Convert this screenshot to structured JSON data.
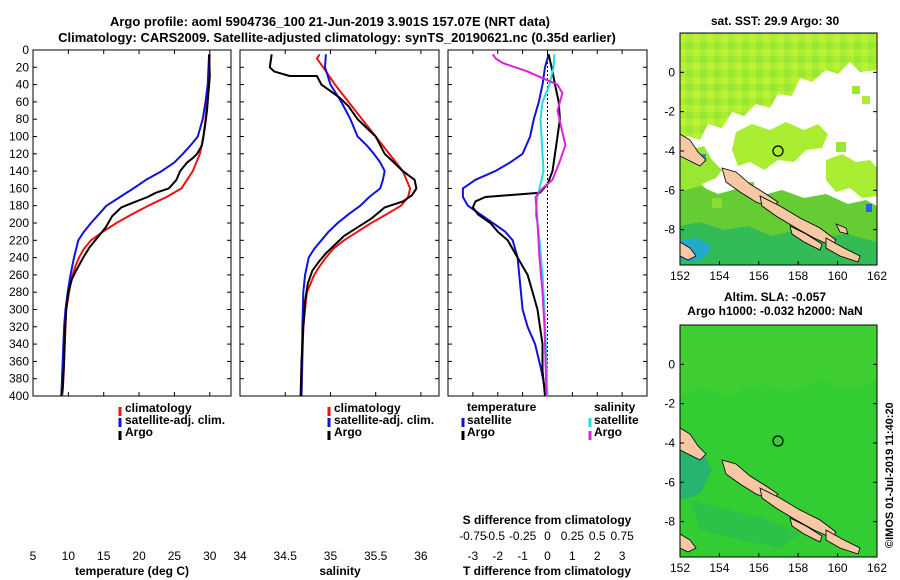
{
  "title": {
    "line1": "Argo profile: aoml 5904736_100 21-Jun-2019 3.901S 157.07E (NRT data)",
    "line2": "Climatology: CARS2009. Satellite-adjusted climatology: synTS_20190621.nc (0.35d earlier)"
  },
  "credit": "©IMOS 01-Jul-2019 11:40:20",
  "colors": {
    "climatology": "#ee1111",
    "satellite": "#1111dd",
    "argo": "#000000",
    "sat_salinity": "#22dddd",
    "argo_salinity": "#dd22dd",
    "land": "#f6c8a4",
    "sea": "#33cc33"
  },
  "chart_data": [
    {
      "type": "line",
      "title": "",
      "xlabel": "temperature (deg C)",
      "ylabel": "",
      "xlim": [
        5,
        33
      ],
      "ylim": [
        400,
        0
      ],
      "xticks": [
        5,
        10,
        15,
        20,
        25,
        30
      ],
      "yticks": [
        0,
        20,
        40,
        60,
        80,
        100,
        120,
        140,
        160,
        180,
        200,
        220,
        240,
        260,
        280,
        300,
        320,
        340,
        360,
        380,
        400
      ],
      "legend": [
        "climatology",
        "satellite-adj. clim.",
        "Argo"
      ],
      "series": [
        {
          "name": "climatology",
          "color": "#ee1111",
          "x": [
            30.0,
            29.9,
            29.8,
            29.6,
            29.4,
            29.1,
            28.6,
            27.6,
            26.0,
            23.9,
            21.3,
            19.0,
            16.8,
            14.9,
            13.2,
            12.2,
            11.5,
            11.0,
            10.6,
            10.3,
            10.1,
            9.9,
            9.7,
            9.6,
            9.5,
            9.4,
            9.3,
            9.2,
            9.1
          ],
          "y": [
            5,
            20,
            40,
            60,
            80,
            100,
            120,
            140,
            160,
            170,
            180,
            190,
            200,
            210,
            220,
            230,
            240,
            250,
            260,
            270,
            280,
            290,
            300,
            320,
            340,
            360,
            380,
            395,
            400
          ]
        },
        {
          "name": "satellite-adj. clim.",
          "color": "#1111dd",
          "x": [
            29.9,
            29.7,
            29.4,
            29.0,
            28.3,
            27.3,
            26.2,
            25.0,
            23.2,
            21.0,
            19.2,
            17.3,
            15.4,
            14.3,
            13.2,
            12.2,
            11.4,
            10.8,
            10.3,
            9.9,
            9.6,
            9.4,
            9.2,
            9.0
          ],
          "y": [
            5,
            40,
            60,
            80,
            100,
            110,
            120,
            130,
            140,
            150,
            160,
            170,
            180,
            190,
            200,
            210,
            220,
            240,
            260,
            280,
            300,
            320,
            360,
            400
          ]
        },
        {
          "name": "Argo",
          "color": "#000000",
          "x": [
            29.9,
            30.0,
            29.8,
            29.6,
            29.3,
            28.9,
            28.2,
            27.6,
            26.8,
            25.8,
            25.3,
            24.2,
            22.4,
            21.2,
            19.6,
            17.5,
            16.2,
            15.3,
            14.3,
            13.0,
            12.1,
            11.1,
            10.5,
            10.0,
            9.7,
            9.5,
            9.4,
            9.2,
            9.0
          ],
          "y": [
            5,
            30,
            50,
            70,
            90,
            110,
            120,
            125,
            130,
            140,
            150,
            160,
            165,
            170,
            175,
            182,
            192,
            205,
            215,
            228,
            240,
            255,
            265,
            280,
            300,
            330,
            360,
            390,
            400
          ]
        }
      ]
    },
    {
      "type": "line",
      "title": "",
      "xlabel": "salinity",
      "ylabel": "",
      "xlim": [
        34,
        36.2
      ],
      "ylim": [
        400,
        0
      ],
      "xticks": [
        34,
        34.5,
        35,
        35.5,
        36
      ],
      "yticks": [
        0,
        20,
        40,
        60,
        80,
        100,
        120,
        140,
        160,
        180,
        200,
        220,
        240,
        260,
        280,
        300,
        320,
        340,
        360,
        380,
        400
      ],
      "legend": [
        "climatology",
        "satellite-adj. clim.",
        "Argo"
      ],
      "series": [
        {
          "name": "climatology",
          "color": "#ee1111",
          "x": [
            34.88,
            34.85,
            34.92,
            35.05,
            35.2,
            35.35,
            35.5,
            35.65,
            35.8,
            35.88,
            35.86,
            35.78,
            35.62,
            35.45,
            35.3,
            35.15,
            35.03,
            34.95,
            34.88,
            34.82,
            34.78,
            34.74,
            34.72,
            34.7,
            34.69,
            34.68
          ],
          "y": [
            5,
            10,
            20,
            40,
            60,
            80,
            100,
            120,
            140,
            160,
            170,
            180,
            190,
            200,
            210,
            220,
            230,
            240,
            250,
            260,
            270,
            280,
            300,
            320,
            360,
            400
          ]
        },
        {
          "name": "satellite-adj. clim.",
          "color": "#1111dd",
          "x": [
            34.95,
            34.94,
            35.0,
            35.12,
            35.22,
            35.3,
            35.4,
            35.48,
            35.55,
            35.6,
            35.58,
            35.55,
            35.43,
            35.33,
            35.2,
            35.08,
            34.98,
            34.9,
            34.82,
            34.76,
            34.72,
            34.7,
            34.69,
            34.68
          ],
          "y": [
            5,
            20,
            40,
            60,
            80,
            100,
            110,
            120,
            130,
            140,
            150,
            160,
            170,
            180,
            190,
            200,
            210,
            220,
            230,
            240,
            260,
            280,
            320,
            400
          ]
        },
        {
          "name": "Argo",
          "color": "#000000",
          "x": [
            34.35,
            34.33,
            34.38,
            34.55,
            34.85,
            34.9,
            35.1,
            35.2,
            35.3,
            35.4,
            35.5,
            35.55,
            35.6,
            35.7,
            35.8,
            35.93,
            35.95,
            35.9,
            35.8,
            35.6,
            35.45,
            35.3,
            35.15,
            35.05,
            34.95,
            34.87,
            34.8,
            34.75,
            34.72,
            34.7,
            34.68,
            34.67
          ],
          "y": [
            5,
            20,
            25,
            30,
            30,
            40,
            55,
            65,
            80,
            90,
            100,
            110,
            120,
            130,
            140,
            150,
            160,
            168,
            175,
            182,
            195,
            205,
            215,
            225,
            235,
            245,
            255,
            270,
            290,
            320,
            360,
            400
          ]
        }
      ]
    },
    {
      "type": "line",
      "title": "",
      "xlabel": "T difference from climatology",
      "xlabel2": "S difference from climatology",
      "ylabel": "",
      "xlim": [
        -4,
        4
      ],
      "x2lim": [
        -1,
        1
      ],
      "ylim": [
        400,
        0
      ],
      "xticks": [
        -3,
        -2,
        -1,
        0,
        1,
        2,
        3
      ],
      "x2ticks": [
        -0.75,
        -0.5,
        -0.25,
        0,
        0.25,
        0.5,
        0.75
      ],
      "legend": [
        "temperature",
        "satellite",
        "Argo",
        "salinity",
        "satellite",
        "Argo"
      ],
      "series": [
        {
          "name": "temperature satellite",
          "axis": "T",
          "color": "#1111dd",
          "x": [
            0.05,
            -0.1,
            -0.2,
            -0.35,
            -0.55,
            -0.7,
            -1.0,
            -1.5,
            -2.1,
            -2.9,
            -3.4,
            -3.4,
            -3.2,
            -2.7,
            -2.2,
            -1.7,
            -1.4,
            -1.2,
            -1.1,
            -1.0,
            -0.8,
            -0.5,
            -0.25,
            -0.05
          ],
          "y": [
            5,
            20,
            40,
            60,
            80,
            100,
            120,
            130,
            140,
            150,
            160,
            170,
            180,
            190,
            200,
            210,
            220,
            240,
            270,
            300,
            320,
            340,
            370,
            400
          ]
        },
        {
          "name": "temperature Argo",
          "axis": "T",
          "color": "#000000",
          "x": [
            0.05,
            0.2,
            0.3,
            0.45,
            0.5,
            0.4,
            0.3,
            0.2,
            0.0,
            -0.3,
            -2.5,
            -2.9,
            -3.0,
            -2.8,
            -2.3,
            -2.0,
            -1.6,
            -1.2,
            -0.8,
            -0.6,
            -0.4,
            -0.3,
            -0.2,
            -0.2,
            -0.1
          ],
          "y": [
            5,
            25,
            40,
            60,
            80,
            100,
            120,
            140,
            155,
            165,
            170,
            175,
            182,
            190,
            200,
            210,
            220,
            240,
            260,
            280,
            300,
            320,
            340,
            370,
            400
          ]
        },
        {
          "name": "salinity satellite",
          "axis": "S",
          "color": "#22dddd",
          "x": [
            0.07,
            0.06,
            0.02,
            -0.05,
            -0.07,
            -0.06,
            -0.05,
            -0.04,
            -0.08,
            -0.1,
            -0.12,
            -0.1,
            -0.08,
            -0.05,
            -0.03,
            -0.02,
            -0.01,
            0.0
          ],
          "y": [
            5,
            20,
            40,
            60,
            80,
            100,
            120,
            140,
            160,
            170,
            190,
            200,
            220,
            260,
            300,
            330,
            360,
            400
          ]
        },
        {
          "name": "salinity Argo",
          "axis": "S",
          "color": "#dd22dd",
          "x": [
            -0.55,
            -0.52,
            -0.45,
            -0.2,
            0.0,
            0.1,
            0.15,
            0.1,
            0.14,
            0.18,
            0.12,
            0.05,
            -0.05,
            -0.12,
            -0.1,
            -0.08,
            -0.05,
            -0.03,
            -0.02,
            -0.01
          ],
          "y": [
            5,
            10,
            15,
            25,
            35,
            40,
            50,
            70,
            90,
            110,
            130,
            150,
            160,
            170,
            200,
            240,
            280,
            320,
            360,
            400
          ]
        }
      ]
    },
    {
      "type": "heatmap",
      "title": "sat. SST: 29.9 Argo: 30",
      "xlabel": "",
      "ylabel": "",
      "xlim": [
        152,
        162
      ],
      "ylim": [
        -9.8,
        2
      ],
      "xticks": [
        152,
        154,
        156,
        158,
        160,
        162
      ],
      "yticks": [
        0,
        -2,
        -4,
        -6,
        -8
      ],
      "marker": {
        "lon": 157.07,
        "lat": -3.9
      }
    },
    {
      "type": "heatmap",
      "title": "Altim. SLA: -0.057",
      "subtitle": "Argo h1000: -0.032 h2000: NaN",
      "xlabel": "",
      "ylabel": "",
      "xlim": [
        152,
        162
      ],
      "ylim": [
        -9.8,
        2
      ],
      "xticks": [
        152,
        154,
        156,
        158,
        160,
        162
      ],
      "yticks": [
        0,
        -2,
        -4,
        -6,
        -8
      ],
      "marker": {
        "lon": 157.07,
        "lat": -3.9
      }
    }
  ]
}
